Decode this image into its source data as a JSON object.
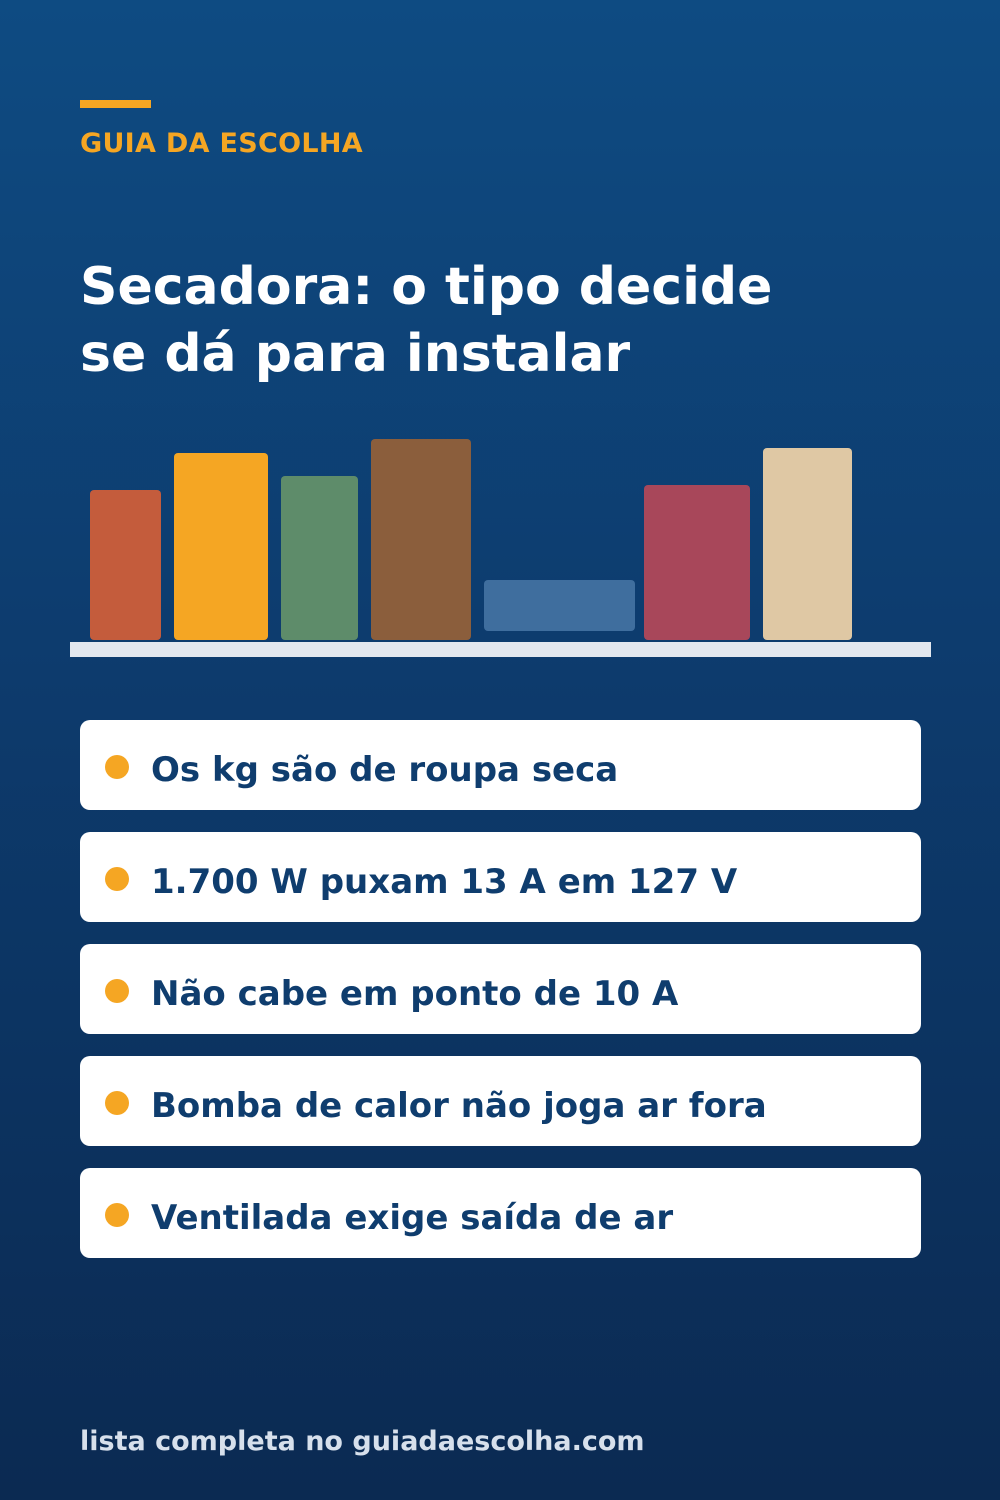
{
  "brand": {
    "label": "GUIA DA ESCOLHA",
    "accent_color": "#f5a623"
  },
  "headline": {
    "line1": "Secadora: o tipo decide",
    "line2": "se dá para instalar"
  },
  "illustration": {
    "kind": "books-on-shelf",
    "books": [
      {
        "color": "#c45c3c"
      },
      {
        "color": "#f5a623"
      },
      {
        "color": "#5e8c6a"
      },
      {
        "color": "#8b5e3c"
      },
      {
        "color": "#3f6e9e",
        "lying_flat": true
      },
      {
        "color": "#a8475a"
      },
      {
        "color": "#dfc8a4"
      }
    ],
    "shelf_color": "#e3e8ef"
  },
  "tips": [
    {
      "text": "Os kg são de roupa seca"
    },
    {
      "text": "1.700 W puxam 13 A em 127 V"
    },
    {
      "text": "Não cabe em ponto de 10 A"
    },
    {
      "text": "Bomba de calor não joga ar fora"
    },
    {
      "text": "Ventilada exige saída de ar"
    }
  ],
  "footer": {
    "text": "lista completa no guiadaescolha.com"
  },
  "colors": {
    "background_top": "#0e4b82",
    "background_bottom": "#0b2a52",
    "tip_text": "#0f3d6e",
    "tip_card": "#ffffff"
  }
}
